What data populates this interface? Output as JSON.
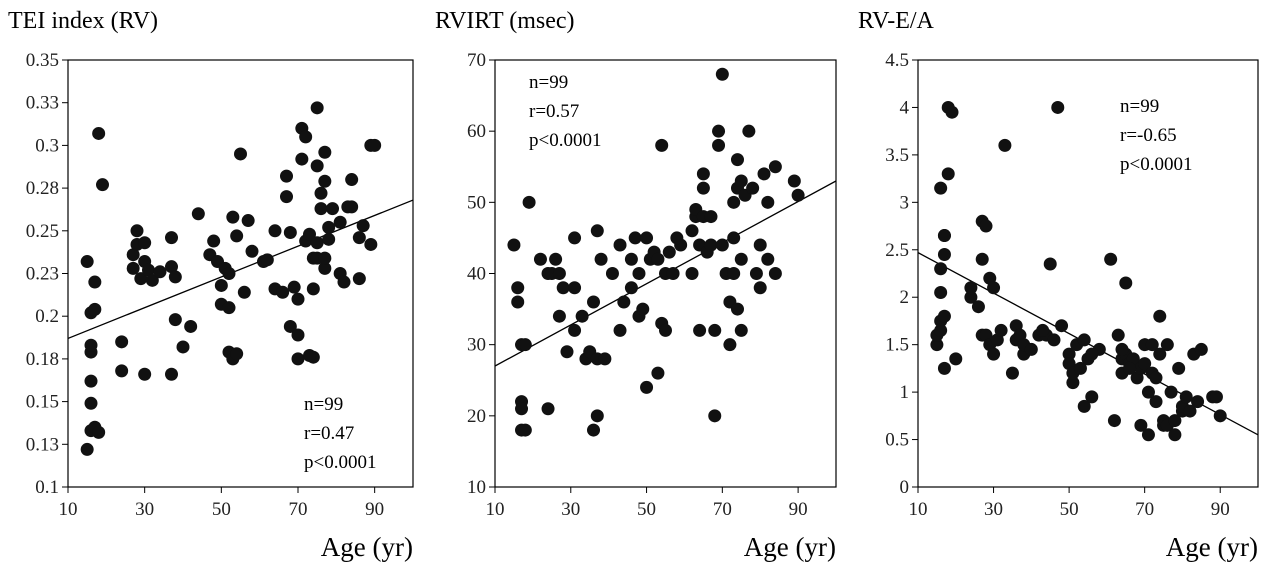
{
  "chart_data": [
    {
      "type": "scatter",
      "title": "TEI index (RV)",
      "xlabel": "Age (yr)",
      "ylabel": "",
      "xlim": [
        10,
        100
      ],
      "ylim": [
        0.1,
        0.35
      ],
      "xticks": [
        10,
        30,
        50,
        70,
        90
      ],
      "yticks": [
        0.1,
        0.125,
        0.15,
        0.175,
        0.2,
        0.225,
        0.25,
        0.275,
        0.3,
        0.325,
        0.35
      ],
      "ytick_labels": [
        "0.1",
        "0.13",
        "0.15",
        "0.18",
        "0.2",
        "0.23",
        "0.25",
        "0.28",
        "0.3",
        "0.33",
        "0.35"
      ],
      "stats": [
        "n=99",
        "r=0.47",
        "p<0.0001"
      ],
      "stats_position": "bottom-right",
      "grid": false,
      "trendline": {
        "x": [
          10,
          100
        ],
        "y": [
          0.187,
          0.268
        ]
      },
      "points": [
        [
          15,
          0.122
        ],
        [
          16,
          0.133
        ],
        [
          16,
          0.149
        ],
        [
          16,
          0.162
        ],
        [
          16,
          0.179
        ],
        [
          16,
          0.183
        ],
        [
          16,
          0.202
        ],
        [
          17,
          0.204
        ],
        [
          17,
          0.22
        ],
        [
          17,
          0.135
        ],
        [
          18,
          0.132
        ],
        [
          18,
          0.307
        ],
        [
          19,
          0.277
        ],
        [
          15,
          0.232
        ],
        [
          24,
          0.185
        ],
        [
          24,
          0.168
        ],
        [
          27,
          0.236
        ],
        [
          27,
          0.228
        ],
        [
          28,
          0.25
        ],
        [
          28,
          0.242
        ],
        [
          29,
          0.222
        ],
        [
          30,
          0.243
        ],
        [
          30,
          0.232
        ],
        [
          30,
          0.166
        ],
        [
          31,
          0.227
        ],
        [
          32,
          0.221
        ],
        [
          34,
          0.226
        ],
        [
          37,
          0.246
        ],
        [
          37,
          0.166
        ],
        [
          37,
          0.229
        ],
        [
          38,
          0.223
        ],
        [
          38,
          0.198
        ],
        [
          40,
          0.182
        ],
        [
          42,
          0.194
        ],
        [
          44,
          0.26
        ],
        [
          47,
          0.236
        ],
        [
          48,
          0.244
        ],
        [
          49,
          0.232
        ],
        [
          50,
          0.218
        ],
        [
          50,
          0.207
        ],
        [
          51,
          0.228
        ],
        [
          52,
          0.225
        ],
        [
          52,
          0.205
        ],
        [
          52,
          0.179
        ],
        [
          53,
          0.175
        ],
        [
          53,
          0.258
        ],
        [
          54,
          0.247
        ],
        [
          54,
          0.178
        ],
        [
          55,
          0.295
        ],
        [
          56,
          0.214
        ],
        [
          57,
          0.256
        ],
        [
          58,
          0.238
        ],
        [
          61,
          0.232
        ],
        [
          64,
          0.25
        ],
        [
          64,
          0.216
        ],
        [
          66,
          0.214
        ],
        [
          67,
          0.282
        ],
        [
          67,
          0.27
        ],
        [
          68,
          0.194
        ],
        [
          68,
          0.249
        ],
        [
          69,
          0.217
        ],
        [
          70,
          0.189
        ],
        [
          70,
          0.21
        ],
        [
          70,
          0.175
        ],
        [
          71,
          0.292
        ],
        [
          71,
          0.31
        ],
        [
          72,
          0.305
        ],
        [
          72,
          0.244
        ],
        [
          73,
          0.248
        ],
        [
          74,
          0.234
        ],
        [
          74,
          0.216
        ],
        [
          74,
          0.176
        ],
        [
          75,
          0.322
        ],
        [
          75,
          0.288
        ],
        [
          75,
          0.243
        ],
        [
          75,
          0.234
        ],
        [
          76,
          0.272
        ],
        [
          76,
          0.263
        ],
        [
          77,
          0.228
        ],
        [
          77,
          0.234
        ],
        [
          77,
          0.279
        ],
        [
          77,
          0.296
        ],
        [
          78,
          0.245
        ],
        [
          78,
          0.252
        ],
        [
          79,
          0.263
        ],
        [
          81,
          0.255
        ],
        [
          81,
          0.225
        ],
        [
          82,
          0.22
        ],
        [
          83,
          0.264
        ],
        [
          84,
          0.28
        ],
        [
          84,
          0.264
        ],
        [
          86,
          0.222
        ],
        [
          86,
          0.246
        ],
        [
          87,
          0.253
        ],
        [
          89,
          0.242
        ],
        [
          89,
          0.3
        ],
        [
          90,
          0.3
        ],
        [
          73,
          0.177
        ],
        [
          62,
          0.233
        ]
      ]
    },
    {
      "type": "scatter",
      "title": "RVIRT (msec)",
      "xlabel": "Age (yr)",
      "ylabel": "",
      "xlim": [
        10,
        100
      ],
      "ylim": [
        10,
        70
      ],
      "xticks": [
        10,
        30,
        50,
        70,
        90
      ],
      "yticks": [
        10,
        20,
        30,
        40,
        50,
        60,
        70
      ],
      "ytick_labels": [
        "10",
        "20",
        "30",
        "40",
        "50",
        "60",
        "70"
      ],
      "stats": [
        "n=99",
        "r=0.57",
        "p<0.0001"
      ],
      "stats_position": "top-left",
      "grid": false,
      "trendline": {
        "x": [
          10,
          100
        ],
        "y": [
          27,
          53
        ]
      },
      "points": [
        [
          15,
          44
        ],
        [
          16,
          38
        ],
        [
          16,
          36
        ],
        [
          17,
          30
        ],
        [
          17,
          22
        ],
        [
          17,
          21
        ],
        [
          17,
          18
        ],
        [
          18,
          18
        ],
        [
          18,
          30
        ],
        [
          19,
          50
        ],
        [
          24,
          21
        ],
        [
          24,
          40
        ],
        [
          25,
          40
        ],
        [
          26,
          42
        ],
        [
          27,
          34
        ],
        [
          27,
          40
        ],
        [
          28,
          38
        ],
        [
          29,
          29
        ],
        [
          31,
          45
        ],
        [
          31,
          32
        ],
        [
          33,
          34
        ],
        [
          34,
          28
        ],
        [
          35,
          29
        ],
        [
          36,
          36
        ],
        [
          36,
          18
        ],
        [
          37,
          46
        ],
        [
          37,
          20
        ],
        [
          37,
          28
        ],
        [
          38,
          42
        ],
        [
          39,
          28
        ],
        [
          41,
          40
        ],
        [
          43,
          32
        ],
        [
          44,
          36
        ],
        [
          46,
          42
        ],
        [
          47,
          45
        ],
        [
          48,
          40
        ],
        [
          48,
          34
        ],
        [
          49,
          35
        ],
        [
          50,
          45
        ],
        [
          50,
          24
        ],
        [
          51,
          42
        ],
        [
          52,
          43
        ],
        [
          53,
          26
        ],
        [
          53,
          42
        ],
        [
          54,
          58
        ],
        [
          54,
          33
        ],
        [
          55,
          32
        ],
        [
          55,
          40
        ],
        [
          57,
          40
        ],
        [
          59,
          44
        ],
        [
          62,
          40
        ],
        [
          63,
          48
        ],
        [
          63,
          49
        ],
        [
          64,
          44
        ],
        [
          64,
          32
        ],
        [
          65,
          48
        ],
        [
          65,
          52
        ],
        [
          65,
          54
        ],
        [
          66,
          43
        ],
        [
          67,
          44
        ],
        [
          67,
          48
        ],
        [
          68,
          32
        ],
        [
          68,
          20
        ],
        [
          69,
          60
        ],
        [
          69,
          58
        ],
        [
          70,
          68
        ],
        [
          70,
          44
        ],
        [
          71,
          40
        ],
        [
          72,
          30
        ],
        [
          72,
          36
        ],
        [
          73,
          40
        ],
        [
          73,
          45
        ],
        [
          73,
          50
        ],
        [
          74,
          35
        ],
        [
          74,
          52
        ],
        [
          74,
          56
        ],
        [
          75,
          42
        ],
        [
          75,
          32
        ],
        [
          75,
          53
        ],
        [
          76,
          51
        ],
        [
          77,
          60
        ],
        [
          78,
          52
        ],
        [
          79,
          40
        ],
        [
          80,
          44
        ],
        [
          80,
          38
        ],
        [
          81,
          54
        ],
        [
          82,
          42
        ],
        [
          82,
          50
        ],
        [
          84,
          55
        ],
        [
          84,
          40
        ],
        [
          89,
          53
        ],
        [
          90,
          51
        ],
        [
          62,
          46
        ],
        [
          58,
          45
        ],
        [
          46,
          38
        ],
        [
          31,
          38
        ],
        [
          22,
          42
        ],
        [
          56,
          43
        ],
        [
          43,
          44
        ]
      ]
    },
    {
      "type": "scatter",
      "title": "RV-E/A",
      "xlabel": "Age (yr)",
      "ylabel": "",
      "xlim": [
        10,
        100
      ],
      "ylim": [
        0,
        4.5
      ],
      "xticks": [
        10,
        30,
        50,
        70,
        90
      ],
      "yticks": [
        0,
        0.5,
        1,
        1.5,
        2,
        2.5,
        3,
        3.5,
        4,
        4.5
      ],
      "ytick_labels": [
        "0",
        "0.5",
        "1",
        "1.5",
        "2",
        "2.5",
        "3",
        "3.5",
        "4",
        "4.5"
      ],
      "stats": [
        "n=99",
        "r=-0.65",
        "p<0.0001"
      ],
      "stats_position": "top-right",
      "grid": false,
      "trendline": {
        "x": [
          10,
          100
        ],
        "y": [
          2.47,
          0.55
        ]
      },
      "points": [
        [
          15,
          1.5
        ],
        [
          15,
          1.6
        ],
        [
          16,
          3.15
        ],
        [
          16,
          2.3
        ],
        [
          16,
          2.05
        ],
        [
          16,
          1.75
        ],
        [
          16,
          1.65
        ],
        [
          17,
          1.8
        ],
        [
          17,
          1.25
        ],
        [
          17,
          2.65
        ],
        [
          17,
          2.45
        ],
        [
          17,
          2.65
        ],
        [
          18,
          3.3
        ],
        [
          18,
          4.0
        ],
        [
          19,
          3.95
        ],
        [
          24,
          2.0
        ],
        [
          24,
          2.1
        ],
        [
          26,
          1.9
        ],
        [
          27,
          2.8
        ],
        [
          27,
          2.4
        ],
        [
          27,
          1.6
        ],
        [
          28,
          2.75
        ],
        [
          28,
          1.6
        ],
        [
          29,
          1.5
        ],
        [
          29,
          2.2
        ],
        [
          30,
          2.1
        ],
        [
          30,
          1.4
        ],
        [
          31,
          1.55
        ],
        [
          32,
          1.65
        ],
        [
          33,
          3.6
        ],
        [
          35,
          1.2
        ],
        [
          36,
          1.7
        ],
        [
          36,
          1.55
        ],
        [
          37,
          1.6
        ],
        [
          38,
          1.4
        ],
        [
          38,
          1.5
        ],
        [
          40,
          1.45
        ],
        [
          42,
          1.6
        ],
        [
          44,
          1.6
        ],
        [
          45,
          2.35
        ],
        [
          46,
          1.55
        ],
        [
          47,
          4.0
        ],
        [
          48,
          1.7
        ],
        [
          50,
          1.4
        ],
        [
          50,
          1.3
        ],
        [
          51,
          1.1
        ],
        [
          51,
          1.2
        ],
        [
          52,
          1.5
        ],
        [
          53,
          1.25
        ],
        [
          54,
          1.55
        ],
        [
          54,
          0.85
        ],
        [
          55,
          1.35
        ],
        [
          56,
          0.95
        ],
        [
          58,
          1.45
        ],
        [
          61,
          2.4
        ],
        [
          62,
          0.7
        ],
        [
          63,
          1.6
        ],
        [
          64,
          1.35
        ],
        [
          64,
          1.2
        ],
        [
          65,
          1.4
        ],
        [
          65,
          2.15
        ],
        [
          66,
          1.3
        ],
        [
          67,
          1.35
        ],
        [
          68,
          1.15
        ],
        [
          69,
          0.65
        ],
        [
          69,
          1.25
        ],
        [
          70,
          1.5
        ],
        [
          70,
          1.3
        ],
        [
          71,
          0.55
        ],
        [
          72,
          1.2
        ],
        [
          72,
          1.5
        ],
        [
          73,
          1.15
        ],
        [
          73,
          0.9
        ],
        [
          74,
          1.4
        ],
        [
          74,
          1.8
        ],
        [
          75,
          0.7
        ],
        [
          75,
          0.65
        ],
        [
          76,
          1.5
        ],
        [
          76,
          0.65
        ],
        [
          77,
          1.0
        ],
        [
          78,
          0.55
        ],
        [
          78,
          0.7
        ],
        [
          79,
          1.25
        ],
        [
          80,
          0.8
        ],
        [
          80,
          0.85
        ],
        [
          81,
          0.95
        ],
        [
          82,
          0.8
        ],
        [
          83,
          1.4
        ],
        [
          84,
          0.9
        ],
        [
          85,
          1.45
        ],
        [
          88,
          0.95
        ],
        [
          89,
          0.95
        ],
        [
          90,
          0.75
        ],
        [
          64,
          1.45
        ],
        [
          66,
          1.25
        ],
        [
          71,
          1.0
        ],
        [
          56,
          1.4
        ],
        [
          43,
          1.65
        ],
        [
          20,
          1.35
        ]
      ]
    }
  ]
}
